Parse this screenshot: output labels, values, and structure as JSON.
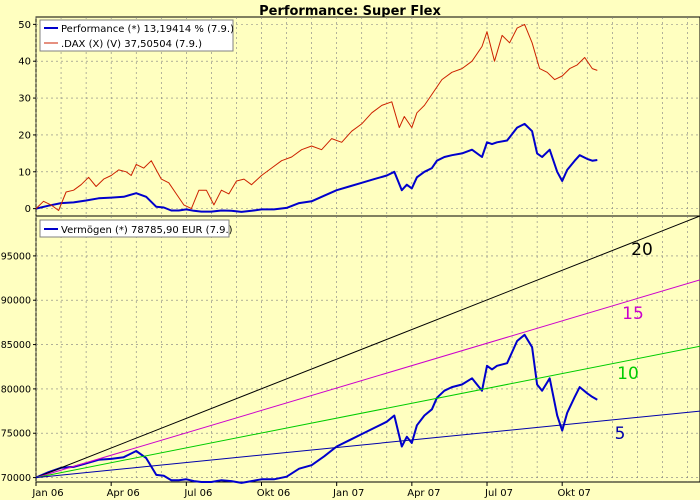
{
  "title": "Performance: Super Flex",
  "colors": {
    "background": "#ffffc0",
    "performance": "#0000cc",
    "dax": "#cc2200",
    "vermoegen": "#0000cc",
    "ref20": "#000000",
    "ref15": "#cc00cc",
    "ref10": "#00cc00",
    "ref5": "#0000aa"
  },
  "x_labels": [
    "Jan 06",
    "Apr 06",
    "Jul 06",
    "Okt 06",
    "Jan 07",
    "Apr 07",
    "Jul 07",
    "Okt 07"
  ],
  "chart_data": [
    {
      "type": "line",
      "title": "Performance: Super Flex",
      "x_unit": "months since Jan 06",
      "xlim": [
        0,
        26.5
      ],
      "ylim": [
        -2,
        52
      ],
      "yticks": [
        0,
        10,
        20,
        30,
        40,
        50
      ],
      "grid": true,
      "legend_position": "top-left",
      "series": [
        {
          "name": "Performance (*) 13,19414 % (7.9.)",
          "legend": "Performance (*) 13,19414 % (7.9.)",
          "color_key": "performance",
          "x": [
            0,
            0.5,
            1,
            1.5,
            2,
            2.5,
            3,
            3.5,
            4,
            4.4,
            4.8,
            5.1,
            5.4,
            5.7,
            6,
            6.3,
            6.6,
            7,
            7.4,
            7.8,
            8.2,
            8.6,
            9,
            9.5,
            10,
            10.5,
            11,
            11.5,
            12,
            12.5,
            13,
            13.5,
            14,
            14.3,
            14.6,
            14.8,
            15,
            15.2,
            15.5,
            15.8,
            16,
            16.3,
            16.6,
            17,
            17.4,
            17.8,
            18,
            18.2,
            18.4,
            18.8,
            19.2,
            19.5,
            19.8,
            20,
            20.2,
            20.5,
            20.8,
            21,
            21.2,
            21.5,
            21.7,
            22,
            22.2,
            22.4
          ],
          "values": [
            0,
            0.8,
            1.5,
            1.7,
            2.2,
            2.8,
            3,
            3.2,
            4.2,
            3.2,
            0.5,
            0.3,
            -0.5,
            -0.5,
            -0.2,
            -0.6,
            -0.8,
            -0.8,
            -0.5,
            -0.6,
            -0.9,
            -0.6,
            -0.2,
            -0.2,
            0.2,
            1.5,
            2,
            3.5,
            5,
            6,
            7,
            8,
            9,
            10,
            5,
            6.5,
            5.5,
            8.5,
            10,
            11,
            13,
            14,
            14.5,
            15,
            16,
            14,
            18,
            17.5,
            18,
            18.5,
            22,
            23,
            21,
            15,
            14,
            16,
            10,
            7.5,
            10.5,
            13,
            14.5,
            13.5,
            13,
            13.2
          ]
        },
        {
          "name": ".DAX (X) (V) 37,50504 (7.9.)",
          "legend": ".DAX (X) (V) 37,50504 (7.9.)",
          "color_key": "dax",
          "x": [
            0,
            0.3,
            0.6,
            0.9,
            1.2,
            1.5,
            1.8,
            2.1,
            2.4,
            2.7,
            3,
            3.3,
            3.6,
            3.8,
            4,
            4.3,
            4.6,
            5,
            5.3,
            5.6,
            5.9,
            6.2,
            6.5,
            6.8,
            7.1,
            7.4,
            7.7,
            8,
            8.3,
            8.6,
            9,
            9.4,
            9.8,
            10.2,
            10.6,
            11,
            11.4,
            11.8,
            12.2,
            12.6,
            13,
            13.4,
            13.8,
            14.2,
            14.5,
            14.7,
            15,
            15.2,
            15.5,
            15.8,
            16.2,
            16.6,
            17,
            17.4,
            17.8,
            18,
            18.3,
            18.6,
            18.9,
            19.2,
            19.5,
            19.8,
            20.1,
            20.4,
            20.7,
            21,
            21.3,
            21.6,
            21.9,
            22.2,
            22.4
          ],
          "values": [
            0,
            2,
            1,
            -0.5,
            4.5,
            5,
            6.5,
            8.5,
            6,
            8,
            9,
            10.5,
            10,
            9,
            12,
            11,
            13,
            8,
            7,
            4,
            1,
            0,
            5,
            5,
            1,
            5,
            4,
            7.5,
            8,
            6.5,
            9,
            11,
            13,
            14,
            16,
            17,
            16,
            19,
            18,
            21,
            23,
            26,
            28,
            29,
            22,
            25,
            22,
            26,
            28,
            31,
            35,
            37,
            38,
            40,
            44,
            48,
            40,
            47,
            45,
            49,
            50,
            45,
            38,
            37,
            35,
            36,
            38,
            39,
            41,
            38,
            37.5
          ]
        }
      ]
    },
    {
      "type": "line",
      "x_unit": "months since Jan 06",
      "xlim": [
        0,
        26.5
      ],
      "ylim": [
        69500,
        99500
      ],
      "yticks": [
        70000,
        75000,
        80000,
        85000,
        90000,
        95000
      ],
      "grid": true,
      "legend_position": "top-left",
      "series": [
        {
          "name": "Vermögen (*) 78785,90 EUR (7.9.)",
          "legend": "Vermögen (*) 78785,90 EUR (7.9.)",
          "color_key": "vermoegen",
          "x": [
            0,
            0.5,
            1,
            1.5,
            2,
            2.5,
            3,
            3.5,
            4,
            4.4,
            4.8,
            5.1,
            5.4,
            5.7,
            6,
            6.3,
            6.6,
            7,
            7.4,
            7.8,
            8.2,
            8.6,
            9,
            9.5,
            10,
            10.5,
            11,
            11.5,
            12,
            12.5,
            13,
            13.5,
            14,
            14.3,
            14.6,
            14.8,
            15,
            15.2,
            15.5,
            15.8,
            16,
            16.3,
            16.6,
            17,
            17.4,
            17.8,
            18,
            18.2,
            18.4,
            18.8,
            19.2,
            19.5,
            19.8,
            20,
            20.2,
            20.5,
            20.8,
            21,
            21.2,
            21.5,
            21.7,
            22,
            22.2,
            22.4
          ],
          "values": [
            70000,
            70600,
            71100,
            71200,
            71600,
            72000,
            72100,
            72300,
            73000,
            72200,
            70300,
            70200,
            69700,
            69700,
            69800,
            69600,
            69500,
            69500,
            69700,
            69600,
            69400,
            69600,
            69800,
            69800,
            70100,
            71000,
            71400,
            72400,
            73500,
            74200,
            74900,
            75600,
            76300,
            77000,
            73500,
            74600,
            73900,
            75900,
            77000,
            77700,
            79000,
            79800,
            80200,
            80500,
            81200,
            79800,
            82600,
            82200,
            82600,
            82900,
            85400,
            86100,
            84700,
            80500,
            79800,
            81200,
            77000,
            75300,
            77300,
            79100,
            80200,
            79500,
            79100,
            78786
          ]
        },
        {
          "name": "20",
          "label": "20",
          "color_key": "ref20",
          "x": [
            0,
            26.5
          ],
          "values": [
            70000,
            99500
          ]
        },
        {
          "name": "15",
          "label": "15",
          "color_key": "ref15",
          "x": [
            0,
            26.5
          ],
          "values": [
            70000,
            92300
          ]
        },
        {
          "name": "10",
          "label": "10",
          "color_key": "ref10",
          "x": [
            0,
            26.5
          ],
          "values": [
            70000,
            84800
          ]
        },
        {
          "name": "5",
          "label": "5",
          "color_key": "ref5",
          "x": [
            0,
            26.5
          ],
          "values": [
            70000,
            77500
          ]
        }
      ]
    }
  ]
}
